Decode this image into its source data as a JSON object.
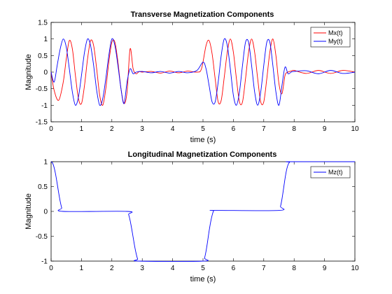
{
  "chart_data": [
    {
      "type": "line",
      "title": "Transverse Magnetization Components",
      "xlabel": "time (s)",
      "ylabel": "Magnitude",
      "xlim": [
        0,
        10
      ],
      "ylim": [
        -1.5,
        1.5
      ],
      "xticks": [
        "0",
        "1",
        "2",
        "3",
        "4",
        "5",
        "6",
        "7",
        "8",
        "9",
        "10"
      ],
      "yticks": [
        "-1.5",
        "-1",
        "-0.5",
        "0",
        "0.5",
        "1",
        "1.5"
      ],
      "ytick_values": [
        -1.5,
        -1,
        -0.5,
        0,
        0.5,
        1,
        1.5
      ],
      "legend": "top-right",
      "grid": false,
      "series": [
        {
          "name": "Mx(t)",
          "color": "#ff0000",
          "x": [
            0,
            0.1,
            0.25,
            0.4,
            0.5,
            0.6,
            0.7,
            0.8,
            0.9,
            1.0,
            1.1,
            1.2,
            1.3,
            1.4,
            1.5,
            1.6,
            1.7,
            1.8,
            1.9,
            2.0,
            2.1,
            2.2,
            2.3,
            2.4,
            2.5,
            2.6,
            2.7,
            2.8,
            2.9,
            3.0,
            3.3,
            3.6,
            3.9,
            4.2,
            4.5,
            4.8,
            4.95,
            5.1,
            5.2,
            5.3,
            5.4,
            5.5,
            5.6,
            5.7,
            5.8,
            5.9,
            6.0,
            6.1,
            6.2,
            6.3,
            6.4,
            6.5,
            6.6,
            6.7,
            6.8,
            6.9,
            7.0,
            7.1,
            7.2,
            7.3,
            7.4,
            7.5,
            7.6,
            7.7,
            7.8,
            7.9,
            8.0,
            8.4,
            8.8,
            9.2,
            9.6,
            10.0
          ],
          "y": [
            0,
            -0.55,
            -0.85,
            -0.3,
            0.4,
            0.95,
            0.7,
            -0.1,
            -0.8,
            -0.95,
            -0.4,
            0.4,
            0.95,
            0.8,
            0.1,
            -0.7,
            -1.0,
            -0.5,
            0.3,
            0.9,
            0.9,
            0.3,
            -0.5,
            -0.95,
            -0.6,
            0.7,
            0.1,
            -0.05,
            0.02,
            0.0,
            0.02,
            -0.03,
            0.03,
            -0.02,
            0.03,
            0.0,
            0.1,
            0.8,
            0.95,
            0.55,
            -0.2,
            -0.9,
            -0.85,
            -0.15,
            0.6,
            1.0,
            0.6,
            -0.2,
            -0.9,
            -0.9,
            -0.2,
            0.6,
            1.0,
            0.6,
            -0.2,
            -0.9,
            -0.9,
            -0.2,
            0.6,
            1.0,
            0.5,
            -0.35,
            -0.65,
            -0.1,
            0.0,
            0.03,
            0.05,
            -0.04,
            0.05,
            -0.04,
            0.05,
            0.0
          ]
        },
        {
          "name": "My(t)",
          "color": "#0000ff",
          "x": [
            0,
            0.1,
            0.2,
            0.3,
            0.4,
            0.5,
            0.6,
            0.7,
            0.8,
            0.9,
            1.0,
            1.1,
            1.2,
            1.3,
            1.4,
            1.5,
            1.6,
            1.7,
            1.8,
            1.9,
            2.0,
            2.1,
            2.2,
            2.3,
            2.4,
            2.5,
            2.6,
            2.7,
            2.8,
            3.0,
            3.3,
            3.6,
            3.9,
            4.2,
            4.5,
            4.8,
            5.0,
            5.1,
            5.2,
            5.3,
            5.4,
            5.5,
            5.6,
            5.7,
            5.8,
            5.9,
            6.0,
            6.1,
            6.2,
            6.3,
            6.4,
            6.5,
            6.6,
            6.7,
            6.8,
            6.9,
            7.0,
            7.1,
            7.2,
            7.3,
            7.4,
            7.5,
            7.6,
            7.7,
            7.8,
            7.9,
            8.0,
            8.4,
            8.8,
            9.2,
            9.6,
            10.0
          ],
          "y": [
            0,
            -0.3,
            0.2,
            0.7,
            1.0,
            0.75,
            0.1,
            -0.6,
            -1.0,
            -0.75,
            -0.1,
            0.6,
            1.0,
            0.8,
            0.2,
            -0.55,
            -1.0,
            -0.8,
            -0.2,
            0.5,
            1.0,
            0.8,
            0.2,
            -0.5,
            -0.95,
            -0.3,
            0.1,
            -0.05,
            0.0,
            0.02,
            -0.02,
            0.02,
            -0.03,
            0.02,
            -0.02,
            0.05,
            0.3,
            0.1,
            -0.4,
            -0.9,
            -0.9,
            -0.3,
            0.5,
            1.0,
            0.8,
            0.1,
            -0.7,
            -1.0,
            -0.6,
            0.2,
            0.9,
            0.9,
            0.2,
            -0.6,
            -1.0,
            -0.6,
            0.2,
            0.9,
            0.9,
            0.2,
            -0.6,
            -1.0,
            -0.4,
            0.15,
            -0.05,
            0.0,
            0.02,
            0.04,
            -0.05,
            0.05,
            -0.04,
            0.0
          ]
        }
      ]
    },
    {
      "type": "line",
      "title": "Longitudinal Magnetization Components",
      "xlabel": "time (s)",
      "ylabel": "Magnitude",
      "xlim": [
        0,
        10
      ],
      "ylim": [
        -1,
        1
      ],
      "xticks": [
        "0",
        "1",
        "2",
        "3",
        "4",
        "5",
        "6",
        "7",
        "8",
        "9",
        "10"
      ],
      "yticks": [
        "-1",
        "-0.5",
        "0",
        "0.5",
        "1"
      ],
      "ytick_values": [
        -1,
        -0.5,
        0,
        0.5,
        1
      ],
      "legend": "top-right",
      "grid": false,
      "series": [
        {
          "name": "Mz(t)",
          "color": "#0000ff",
          "x": [
            0,
            0.05,
            0.1,
            0.15,
            0.2,
            0.25,
            0.3,
            0.35,
            0.4,
            2.5,
            2.55,
            2.6,
            2.65,
            2.7,
            2.75,
            2.8,
            2.85,
            2.9,
            5.0,
            5.05,
            5.1,
            5.15,
            5.2,
            5.25,
            5.3,
            5.35,
            5.4,
            7.5,
            7.55,
            7.6,
            7.65,
            7.7,
            7.75,
            7.8,
            7.85,
            7.9,
            10.0
          ],
          "y": [
            1.0,
            0.97,
            0.88,
            0.74,
            0.56,
            0.37,
            0.2,
            0.07,
            0.0,
            0.0,
            -0.06,
            -0.18,
            -0.34,
            -0.52,
            -0.7,
            -0.85,
            -0.96,
            -1.0,
            -1.0,
            -0.94,
            -0.8,
            -0.61,
            -0.4,
            -0.22,
            -0.08,
            0.01,
            0.02,
            0.02,
            0.1,
            0.25,
            0.45,
            0.66,
            0.83,
            0.94,
            0.99,
            1.0,
            1.0
          ]
        }
      ]
    }
  ]
}
